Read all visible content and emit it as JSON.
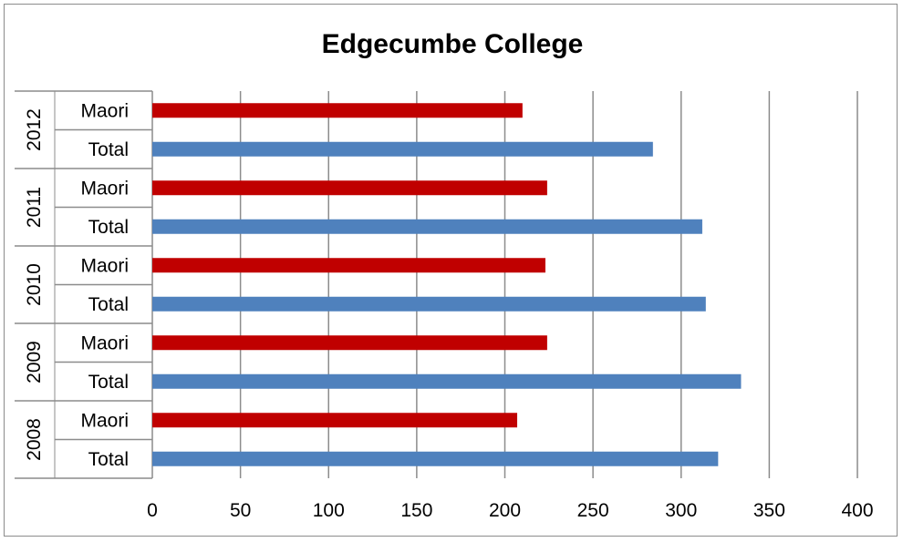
{
  "chart_data": {
    "type": "bar",
    "orientation": "horizontal",
    "title": "Edgecumbe College",
    "xlabel": "",
    "ylabel": "",
    "xlim": [
      0,
      400
    ],
    "x_ticks": [
      "0",
      "50",
      "100",
      "150",
      "200",
      "250",
      "300",
      "350",
      "400"
    ],
    "grid": true,
    "legend": "none",
    "groups": [
      {
        "group": "2012",
        "bars": [
          {
            "label": "Maori",
            "value": 210
          },
          {
            "label": "Total",
            "value": 284
          }
        ]
      },
      {
        "group": "2011",
        "bars": [
          {
            "label": "Maori",
            "value": 224
          },
          {
            "label": "Total",
            "value": 312
          }
        ]
      },
      {
        "group": "2010",
        "bars": [
          {
            "label": "Maori",
            "value": 223
          },
          {
            "label": "Total",
            "value": 314
          }
        ]
      },
      {
        "group": "2009",
        "bars": [
          {
            "label": "Maori",
            "value": 224
          },
          {
            "label": "Total",
            "value": 334
          }
        ]
      },
      {
        "group": "2008",
        "bars": [
          {
            "label": "Maori",
            "value": 207
          },
          {
            "label": "Total",
            "value": 321
          }
        ]
      }
    ],
    "colors": {
      "Maori": "#c00000",
      "Total": "#4f81bd"
    }
  }
}
